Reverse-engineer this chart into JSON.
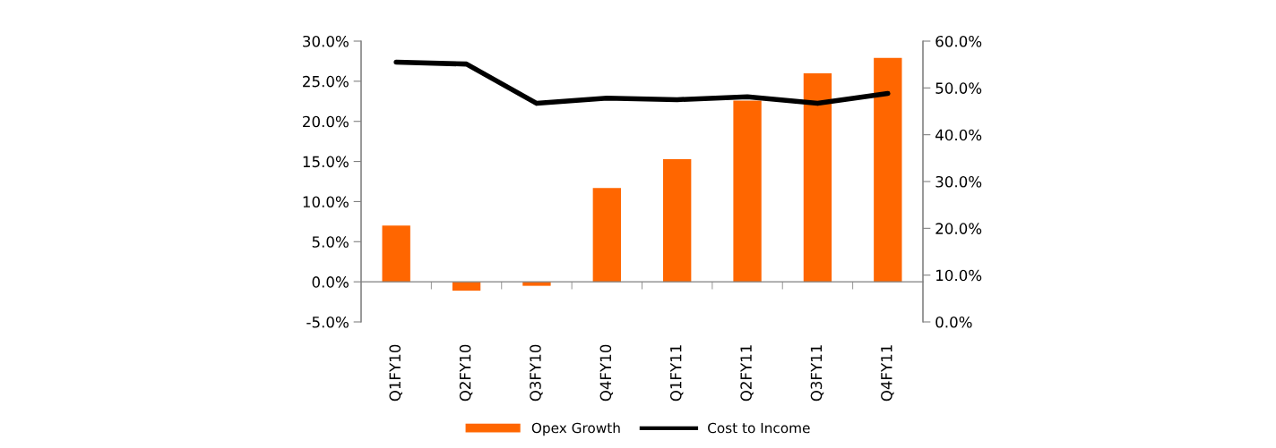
{
  "chart_data": {
    "type": "bar",
    "categories": [
      "Q1FY10",
      "Q2FY10",
      "Q3FY10",
      "Q4FY10",
      "Q1FY11",
      "Q2FY11",
      "Q3FY11",
      "Q4FY11"
    ],
    "series": [
      {
        "name": "Opex Growth",
        "color": "#ff6600",
        "values": [
          7.0,
          -1.1,
          -0.5,
          11.7,
          15.3,
          22.6,
          26.0,
          27.9
        ]
      },
      {
        "name": "Cost to Income",
        "type": "line",
        "axis": "y2",
        "color": "#000000",
        "values": [
          55.5,
          55.1,
          46.7,
          47.8,
          47.5,
          48.1,
          46.7,
          48.8
        ]
      }
    ],
    "ylim": [
      -5,
      30
    ],
    "yticks": [
      {
        "value": -5,
        "label": "-5.0%"
      },
      {
        "value": 0,
        "label": "0.0%"
      },
      {
        "value": 5,
        "label": "5.0%"
      },
      {
        "value": 10,
        "label": "10.0%"
      },
      {
        "value": 15,
        "label": "15.0%"
      },
      {
        "value": 20,
        "label": "20.0%"
      },
      {
        "value": 25,
        "label": "25.0%"
      },
      {
        "value": 30,
        "label": "30.0%"
      }
    ],
    "y2lim": [
      0,
      60
    ],
    "y2ticks": [
      {
        "value": 0,
        "label": "0.0%"
      },
      {
        "value": 10,
        "label": "10.0%"
      },
      {
        "value": 20,
        "label": "20.0%"
      },
      {
        "value": 30,
        "label": "30.0%"
      },
      {
        "value": 40,
        "label": "40.0%"
      },
      {
        "value": 50,
        "label": "50.0%"
      },
      {
        "value": 60,
        "label": "60.0%"
      }
    ],
    "legend": "bottom",
    "marker": "none",
    "line_style": "solid"
  }
}
